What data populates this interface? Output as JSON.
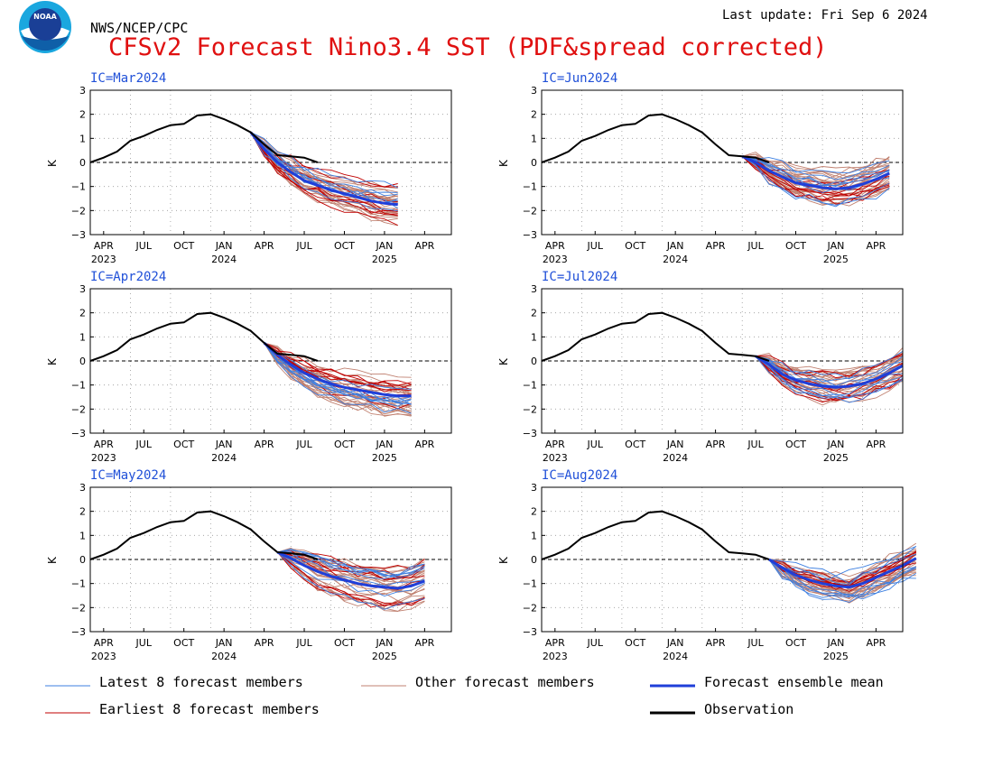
{
  "header": {
    "org": "NWS/NCEP/CPC",
    "title": "CFSv2 Forecast Nino3.4 SST (PDF&spread corrected)",
    "last_update": "Last update: Fri Sep 6 2024",
    "logo_text": "NOAA"
  },
  "colors": {
    "title": "#e01010",
    "ic_label": "#2050d8",
    "latest8": "#3d7fe0",
    "earliest8": "#c00000",
    "other": "#c08070",
    "mean": "#1f3fd9",
    "observation": "#000000"
  },
  "legend": [
    {
      "label": "Latest 8 forecast members",
      "color": "#3d7fe0",
      "width": 1
    },
    {
      "label": "Other forecast members",
      "color": "#c08070",
      "width": 1
    },
    {
      "label": "Forecast ensemble mean",
      "color": "#1f3fd9",
      "width": 3
    },
    {
      "label": "Earliest 8 forecast members",
      "color": "#c00000",
      "width": 1
    },
    {
      "label": "Observation",
      "color": "#000000",
      "width": 3
    }
  ],
  "chart_data": [
    {
      "type": "line",
      "ic": "IC=Mar2024",
      "ylabel": "K",
      "ylim": [
        -3,
        3
      ],
      "yticks": [
        "3",
        "2",
        "1",
        "0",
        "−1",
        "−2",
        "−3"
      ],
      "xticks": [
        "APR",
        "JUL",
        "OCT",
        "JAN",
        "APR",
        "JUL",
        "OCT",
        "JAN",
        "APR"
      ],
      "year_labels": [
        "2023",
        "2024",
        "2025"
      ],
      "grid": true,
      "observation": [
        0.0,
        0.2,
        0.45,
        0.9,
        1.1,
        1.35,
        1.55,
        1.6,
        1.95,
        2.0,
        1.8,
        1.55,
        1.25,
        0.75,
        0.3,
        0.25,
        0.2,
        0.0
      ],
      "forecast_start_index": 12,
      "forecast_mean": [
        1.25,
        0.55,
        0.0,
        -0.4,
        -0.75,
        -0.95,
        -1.15,
        -1.3,
        -1.45,
        -1.6,
        -1.7,
        -1.75
      ],
      "forecast_spread": [
        0.05,
        0.2,
        0.3,
        0.35,
        0.38,
        0.4,
        0.42,
        0.44,
        0.46,
        0.48,
        0.5,
        0.5
      ]
    },
    {
      "type": "line",
      "ic": "IC=Jun2024",
      "ylabel": "K",
      "ylim": [
        -3,
        3
      ],
      "yticks": [
        "3",
        "2",
        "1",
        "0",
        "−1",
        "−2",
        "−3"
      ],
      "xticks": [
        "APR",
        "JUL",
        "OCT",
        "JAN",
        "APR",
        "JUL",
        "OCT",
        "JAN",
        "APR"
      ],
      "year_labels": [
        "2023",
        "2024",
        "2025"
      ],
      "grid": true,
      "observation": [
        0.0,
        0.2,
        0.45,
        0.9,
        1.1,
        1.35,
        1.55,
        1.6,
        1.95,
        2.0,
        1.8,
        1.55,
        1.25,
        0.75,
        0.3,
        0.25,
        0.2,
        0.0
      ],
      "forecast_start_index": 15,
      "forecast_mean": [
        0.25,
        0.0,
        -0.35,
        -0.6,
        -0.85,
        -0.95,
        -1.05,
        -1.1,
        -1.05,
        -0.9,
        -0.7,
        -0.45
      ],
      "forecast_spread": [
        0.05,
        0.2,
        0.3,
        0.35,
        0.4,
        0.42,
        0.45,
        0.45,
        0.45,
        0.45,
        0.45,
        0.45
      ]
    },
    {
      "type": "line",
      "ic": "IC=Apr2024",
      "ylabel": "K",
      "ylim": [
        -3,
        3
      ],
      "yticks": [
        "3",
        "2",
        "1",
        "0",
        "−1",
        "−2",
        "−3"
      ],
      "xticks": [
        "APR",
        "JUL",
        "OCT",
        "JAN",
        "APR",
        "JUL",
        "OCT",
        "JAN",
        "APR"
      ],
      "year_labels": [
        "2023",
        "2024",
        "2025"
      ],
      "grid": true,
      "observation": [
        0.0,
        0.2,
        0.45,
        0.9,
        1.1,
        1.35,
        1.55,
        1.6,
        1.95,
        2.0,
        1.8,
        1.55,
        1.25,
        0.75,
        0.3,
        0.25,
        0.2,
        0.0
      ],
      "forecast_start_index": 13,
      "forecast_mean": [
        0.75,
        0.25,
        -0.15,
        -0.5,
        -0.75,
        -0.95,
        -1.1,
        -1.2,
        -1.3,
        -1.4,
        -1.45,
        -1.45
      ],
      "forecast_spread": [
        0.05,
        0.2,
        0.3,
        0.35,
        0.4,
        0.42,
        0.45,
        0.47,
        0.48,
        0.5,
        0.5,
        0.5
      ]
    },
    {
      "type": "line",
      "ic": "IC=Jul2024",
      "ylabel": "K",
      "ylim": [
        -3,
        3
      ],
      "yticks": [
        "3",
        "2",
        "1",
        "0",
        "−1",
        "−2",
        "−3"
      ],
      "xticks": [
        "APR",
        "JUL",
        "OCT",
        "JAN",
        "APR",
        "JUL",
        "OCT",
        "JAN",
        "APR"
      ],
      "year_labels": [
        "2023",
        "2024",
        "2025"
      ],
      "grid": true,
      "observation": [
        0.0,
        0.2,
        0.45,
        0.9,
        1.1,
        1.35,
        1.55,
        1.6,
        1.95,
        2.0,
        1.8,
        1.55,
        1.25,
        0.75,
        0.3,
        0.25,
        0.2,
        0.0
      ],
      "forecast_start_index": 16,
      "forecast_mean": [
        0.2,
        -0.15,
        -0.55,
        -0.8,
        -0.95,
        -1.05,
        -1.1,
        -1.05,
        -0.95,
        -0.75,
        -0.5,
        -0.2
      ],
      "forecast_spread": [
        0.05,
        0.2,
        0.28,
        0.33,
        0.38,
        0.4,
        0.42,
        0.42,
        0.42,
        0.42,
        0.42,
        0.42
      ]
    },
    {
      "type": "line",
      "ic": "IC=May2024",
      "ylabel": "K",
      "ylim": [
        -3,
        3
      ],
      "yticks": [
        "3",
        "2",
        "1",
        "0",
        "−1",
        "−2",
        "−3"
      ],
      "xticks": [
        "APR",
        "JUL",
        "OCT",
        "JAN",
        "APR",
        "JUL",
        "OCT",
        "JAN",
        "APR"
      ],
      "year_labels": [
        "2023",
        "2024",
        "2025"
      ],
      "grid": true,
      "observation": [
        0.0,
        0.2,
        0.45,
        0.9,
        1.1,
        1.35,
        1.55,
        1.6,
        1.95,
        2.0,
        1.8,
        1.55,
        1.25,
        0.75,
        0.3,
        0.25,
        0.2,
        0.0
      ],
      "forecast_start_index": 14,
      "forecast_mean": [
        0.3,
        0.05,
        -0.25,
        -0.5,
        -0.7,
        -0.85,
        -1.0,
        -1.1,
        -1.15,
        -1.2,
        -1.1,
        -0.9
      ],
      "forecast_spread": [
        0.05,
        0.2,
        0.32,
        0.4,
        0.45,
        0.48,
        0.5,
        0.52,
        0.52,
        0.52,
        0.52,
        0.52
      ]
    },
    {
      "type": "line",
      "ic": "IC=Aug2024",
      "ylabel": "K",
      "ylim": [
        -3,
        3
      ],
      "yticks": [
        "3",
        "2",
        "1",
        "0",
        "−1",
        "−2",
        "−3"
      ],
      "xticks": [
        "APR",
        "JUL",
        "OCT",
        "JAN",
        "APR",
        "JUL",
        "OCT",
        "JAN",
        "APR"
      ],
      "year_labels": [
        "2023",
        "2024",
        "2025"
      ],
      "grid": true,
      "observation": [
        0.0,
        0.2,
        0.45,
        0.9,
        1.1,
        1.35,
        1.55,
        1.6,
        1.95,
        2.0,
        1.8,
        1.55,
        1.25,
        0.75,
        0.3,
        0.25,
        0.2,
        0.0
      ],
      "forecast_start_index": 17,
      "forecast_mean": [
        0.0,
        -0.35,
        -0.65,
        -0.85,
        -1.0,
        -1.1,
        -1.15,
        -1.0,
        -0.75,
        -0.5,
        -0.25,
        0.05
      ],
      "forecast_spread": [
        0.05,
        0.18,
        0.25,
        0.3,
        0.33,
        0.35,
        0.37,
        0.38,
        0.4,
        0.42,
        0.42,
        0.42
      ]
    }
  ]
}
